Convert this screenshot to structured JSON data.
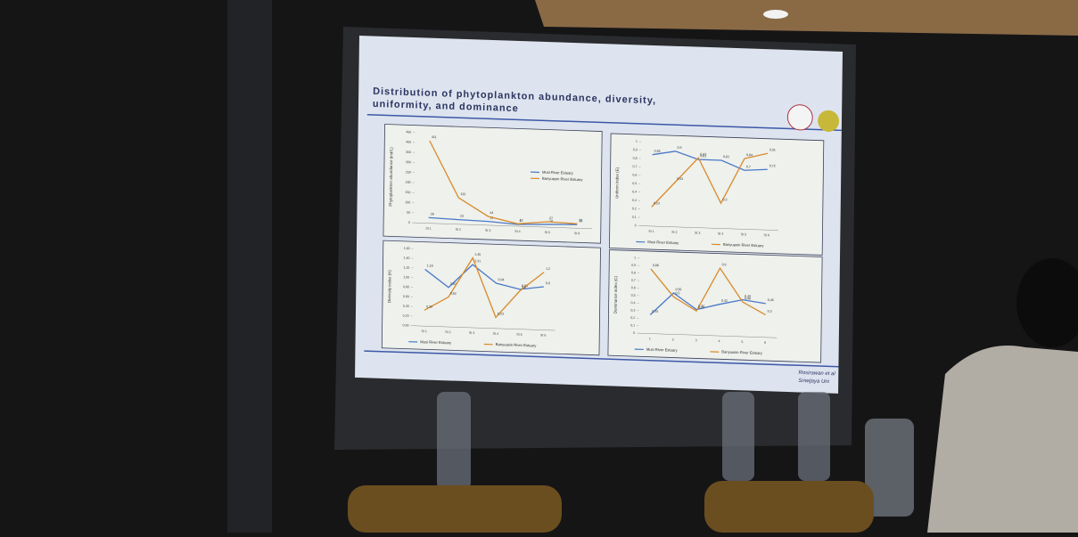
{
  "slide": {
    "title": [
      "Distribution of phytoplankton abundance, diversity,",
      "uniformity, and dominance"
    ],
    "credit": [
      "Rosirawan et al",
      "Sriwijaya Uni"
    ]
  },
  "chart_data": [
    {
      "type": "line",
      "y_label": "Phytoplankton abundance (ind/L)",
      "categories": [
        "St 1",
        "St 2",
        "St 3",
        "St 4",
        "St 5",
        "St 6"
      ],
      "ylim": [
        0,
        450
      ],
      "yticks": [
        0,
        50,
        100,
        150,
        200,
        250,
        300,
        350,
        400,
        450
      ],
      "legend": "inside",
      "series": [
        {
          "name": "Musi River Estuary",
          "color": "#4a78c8",
          "values": [
            28,
            23,
            19,
            9,
            14,
            18
          ]
        },
        {
          "name": "Banyuasin River Estuary",
          "color": "#d98a2b",
          "values": [
            411,
            132,
            44,
            12,
            27,
            22
          ]
        }
      ]
    },
    {
      "type": "line",
      "y_label": "Uniform index (E)",
      "categories": [
        "St 1",
        "St 2",
        "St 3",
        "St 4",
        "St 5",
        "St 6"
      ],
      "ylim": [
        0,
        1
      ],
      "yticks": [
        0,
        {
          "value": 0.1,
          "label": "0,1"
        },
        {
          "value": 0.2,
          "label": "0,2"
        },
        {
          "value": 0.3,
          "label": "0,3"
        },
        {
          "value": 0.4,
          "label": "0,4"
        },
        {
          "value": 0.5,
          "label": "0,5"
        },
        {
          "value": 0.6,
          "label": "0,6"
        },
        {
          "value": 0.7,
          "label": "0,7"
        },
        {
          "value": 0.8,
          "label": "0,8"
        },
        {
          "value": 0.9,
          "label": "0,9"
        },
        1
      ],
      "legend": "below",
      "series": [
        {
          "name": "Musi River Estuary",
          "color": "#4a78c8",
          "values": [
            0.85,
            0.9,
            0.81,
            0.81,
            0.7,
            0.72
          ],
          "value_labels": [
            "0,85",
            "0,9",
            "0,81",
            "0,81",
            "0,7",
            "0,72"
          ]
        },
        {
          "name": "Banyuasin River Estuary",
          "color": "#d98a2b",
          "values": [
            0.23,
            0.53,
            0.83,
            0.3,
            0.84,
            0.91
          ],
          "value_labels": [
            "0,23",
            "0,53",
            "0,83",
            "0,3",
            "0,84",
            "0,91"
          ]
        }
      ]
    },
    {
      "type": "line",
      "y_label": "Diversity index (H)",
      "categories": [
        "St 1",
        "St 2",
        "St 3",
        "St 4",
        "St 5",
        "St 6"
      ],
      "ylim": [
        0,
        1.6
      ],
      "yticks": [
        {
          "value": 0,
          "label": "0,00"
        },
        {
          "value": 0.2,
          "label": "0,20"
        },
        {
          "value": 0.4,
          "label": "0,40"
        },
        {
          "value": 0.6,
          "label": "0,60"
        },
        {
          "value": 0.8,
          "label": "0,80"
        },
        {
          "value": 1,
          "label": "1,00"
        },
        {
          "value": 1.2,
          "label": "1,20"
        },
        {
          "value": 1.4,
          "label": "1,40"
        },
        {
          "value": 1.6,
          "label": "1,60"
        }
      ],
      "legend": "below",
      "series": [
        {
          "name": "Musi River Estuary",
          "color": "#4a78c8",
          "values": [
            1.18,
            0.82,
            1.31,
            0.94,
            0.83,
            0.9
          ],
          "value_labels": [
            "1,18",
            "0,82",
            "1,31",
            "0,94",
            "0,83",
            "0,9"
          ]
        },
        {
          "name": "Banyuasin River Estuary",
          "color": "#d98a2b",
          "values": [
            0.33,
            0.62,
            1.45,
            0.23,
            0.8,
            1.2
          ],
          "value_labels": [
            "0,33",
            "0,62",
            "1,45",
            "0,23",
            "0,8",
            "1,2"
          ]
        }
      ]
    },
    {
      "type": "line",
      "y_label": "Dominance index (C)",
      "categories": [
        "1",
        "2",
        "3",
        "4",
        "5",
        "6"
      ],
      "ylim": [
        0,
        1
      ],
      "yticks": [
        0,
        {
          "value": 0.1,
          "label": "0,1"
        },
        {
          "value": 0.2,
          "label": "0,2"
        },
        {
          "value": 0.3,
          "label": "0,3"
        },
        {
          "value": 0.4,
          "label": "0,4"
        },
        {
          "value": 0.5,
          "label": "0,5"
        },
        {
          "value": 0.6,
          "label": "0,6"
        },
        {
          "value": 0.7,
          "label": "0,7"
        },
        {
          "value": 0.8,
          "label": "0,8"
        },
        {
          "value": 0.9,
          "label": "0,9"
        },
        1
      ],
      "legend": "below",
      "series": [
        {
          "name": "Musi River Estuary",
          "color": "#4a78c8",
          "values": [
            0.25,
            0.55,
            0.34,
            0.42,
            0.49,
            0.45
          ],
          "value_labels": [
            "0,25",
            "0,55",
            "0,34",
            "0,42",
            "0,49",
            "0,45"
          ]
        },
        {
          "name": "Banyuasin River Estuary",
          "color": "#d98a2b",
          "values": [
            0.86,
            0.5,
            0.32,
            0.9,
            0.46,
            0.3
          ],
          "value_labels": [
            "0,86",
            "0,5",
            "0,32",
            "0,9",
            "0,46",
            "0,3"
          ]
        }
      ]
    }
  ]
}
